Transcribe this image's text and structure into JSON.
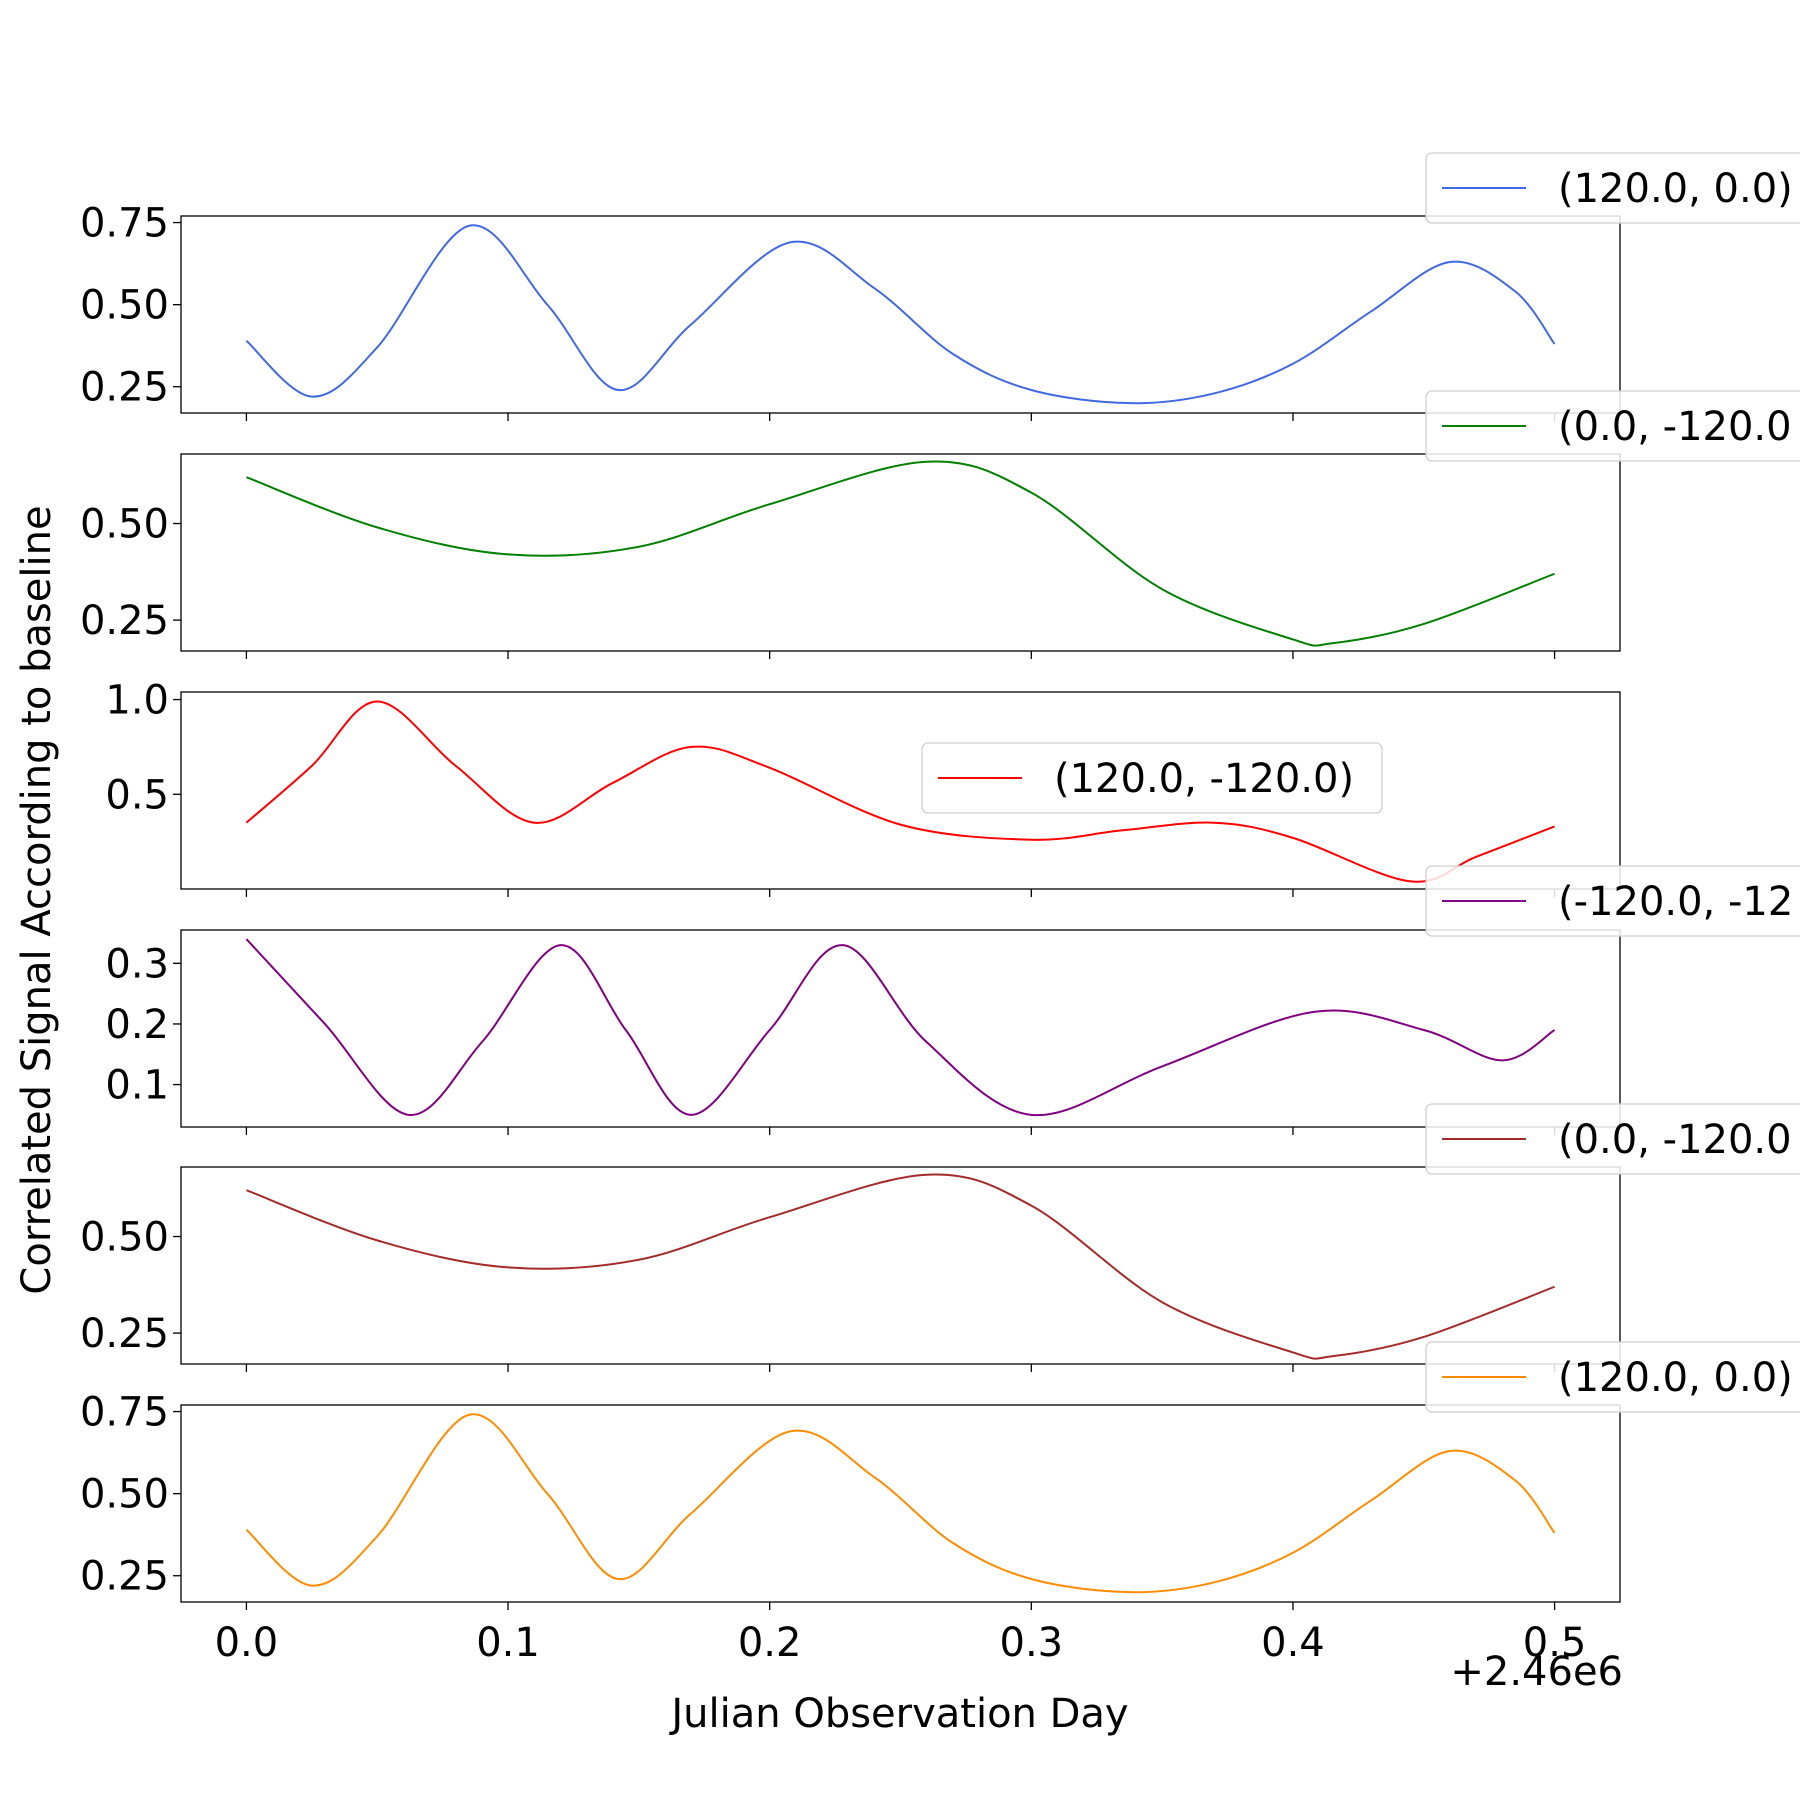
{
  "chart_data": {
    "type": "line",
    "xlabel": "Julian Observation Day",
    "ylabel": "Correlated Signal According to baseline",
    "x_offset_label": "+2.46e6",
    "xlim": [
      -0.025,
      0.525
    ],
    "x_ticks": [
      0.0,
      0.1,
      0.2,
      0.3,
      0.4,
      0.5
    ],
    "x_tick_labels": [
      "0.0",
      "0.1",
      "0.2",
      "0.3",
      "0.4",
      "0.5"
    ],
    "grid": false,
    "panels": [
      {
        "legend": "(120.0, 0.0)",
        "legend_placement": "upper-right-outside",
        "color": "#4169e1",
        "ylim": [
          0.17,
          0.77
        ],
        "y_ticks": [
          0.25,
          0.5,
          0.75
        ],
        "y_tick_labels": [
          "0.25",
          "0.50",
          "0.75"
        ],
        "x": [
          0.0,
          0.025,
          0.05,
          0.085,
          0.115,
          0.142,
          0.17,
          0.208,
          0.24,
          0.27,
          0.3,
          0.338,
          0.37,
          0.4,
          0.43,
          0.46,
          0.485,
          0.5
        ],
        "y": [
          0.39,
          0.22,
          0.37,
          0.74,
          0.5,
          0.24,
          0.44,
          0.69,
          0.55,
          0.35,
          0.24,
          0.2,
          0.23,
          0.32,
          0.48,
          0.63,
          0.54,
          0.38
        ]
      },
      {
        "legend": "(0.0, -120.0",
        "legend_placement": "upper-right-outside",
        "color": "#008000",
        "ylim": [
          0.17,
          0.68
        ],
        "y_ticks": [
          0.25,
          0.5
        ],
        "y_tick_labels": [
          "0.25",
          "0.50"
        ],
        "x": [
          0.0,
          0.05,
          0.1,
          0.15,
          0.2,
          0.26,
          0.3,
          0.35,
          0.4,
          0.415,
          0.45,
          0.5
        ],
        "y": [
          0.62,
          0.49,
          0.42,
          0.44,
          0.55,
          0.66,
          0.58,
          0.33,
          0.2,
          0.19,
          0.24,
          0.37
        ]
      },
      {
        "legend": "(120.0, -120.0)",
        "legend_placement": "center-right",
        "color": "#ff0000",
        "ylim": [
          0.0,
          1.04
        ],
        "y_ticks": [
          0.5,
          1.0
        ],
        "y_tick_labels": [
          "0.5",
          "1.0"
        ],
        "x": [
          0.0,
          0.025,
          0.05,
          0.08,
          0.11,
          0.14,
          0.17,
          0.2,
          0.25,
          0.3,
          0.335,
          0.37,
          0.4,
          0.445,
          0.47,
          0.5
        ],
        "y": [
          0.35,
          0.65,
          0.99,
          0.65,
          0.35,
          0.56,
          0.75,
          0.64,
          0.34,
          0.26,
          0.31,
          0.35,
          0.27,
          0.04,
          0.17,
          0.33
        ]
      },
      {
        "legend": "(-120.0, -12",
        "legend_placement": "upper-right-outside",
        "color": "#800080",
        "ylim": [
          0.03,
          0.355
        ],
        "y_ticks": [
          0.1,
          0.2,
          0.3
        ],
        "y_tick_labels": [
          "0.1",
          "0.2",
          "0.3"
        ],
        "x": [
          0.0,
          0.03,
          0.062,
          0.09,
          0.12,
          0.145,
          0.17,
          0.2,
          0.228,
          0.26,
          0.3,
          0.35,
          0.408,
          0.45,
          0.48,
          0.5
        ],
        "y": [
          0.34,
          0.2,
          0.05,
          0.17,
          0.33,
          0.19,
          0.05,
          0.19,
          0.33,
          0.17,
          0.05,
          0.13,
          0.22,
          0.19,
          0.14,
          0.19
        ]
      },
      {
        "legend": "(0.0, -120.0",
        "legend_placement": "upper-right-outside",
        "color": "#a52a2a",
        "ylim": [
          0.17,
          0.68
        ],
        "y_ticks": [
          0.25,
          0.5
        ],
        "y_tick_labels": [
          "0.25",
          "0.50"
        ],
        "x": [
          0.0,
          0.05,
          0.1,
          0.15,
          0.2,
          0.26,
          0.3,
          0.35,
          0.4,
          0.415,
          0.45,
          0.5
        ],
        "y": [
          0.62,
          0.49,
          0.42,
          0.44,
          0.55,
          0.66,
          0.58,
          0.33,
          0.2,
          0.19,
          0.24,
          0.37
        ]
      },
      {
        "legend": "(120.0, 0.0)",
        "legend_placement": "upper-right-outside",
        "color": "#ff8c00",
        "ylim": [
          0.17,
          0.77
        ],
        "y_ticks": [
          0.25,
          0.5,
          0.75
        ],
        "y_tick_labels": [
          "0.25",
          "0.50",
          "0.75"
        ],
        "x": [
          0.0,
          0.025,
          0.05,
          0.085,
          0.115,
          0.142,
          0.17,
          0.208,
          0.24,
          0.27,
          0.3,
          0.338,
          0.37,
          0.4,
          0.43,
          0.46,
          0.485,
          0.5
        ],
        "y": [
          0.39,
          0.22,
          0.37,
          0.74,
          0.5,
          0.24,
          0.44,
          0.69,
          0.55,
          0.35,
          0.24,
          0.2,
          0.23,
          0.32,
          0.48,
          0.63,
          0.54,
          0.38
        ]
      }
    ]
  }
}
